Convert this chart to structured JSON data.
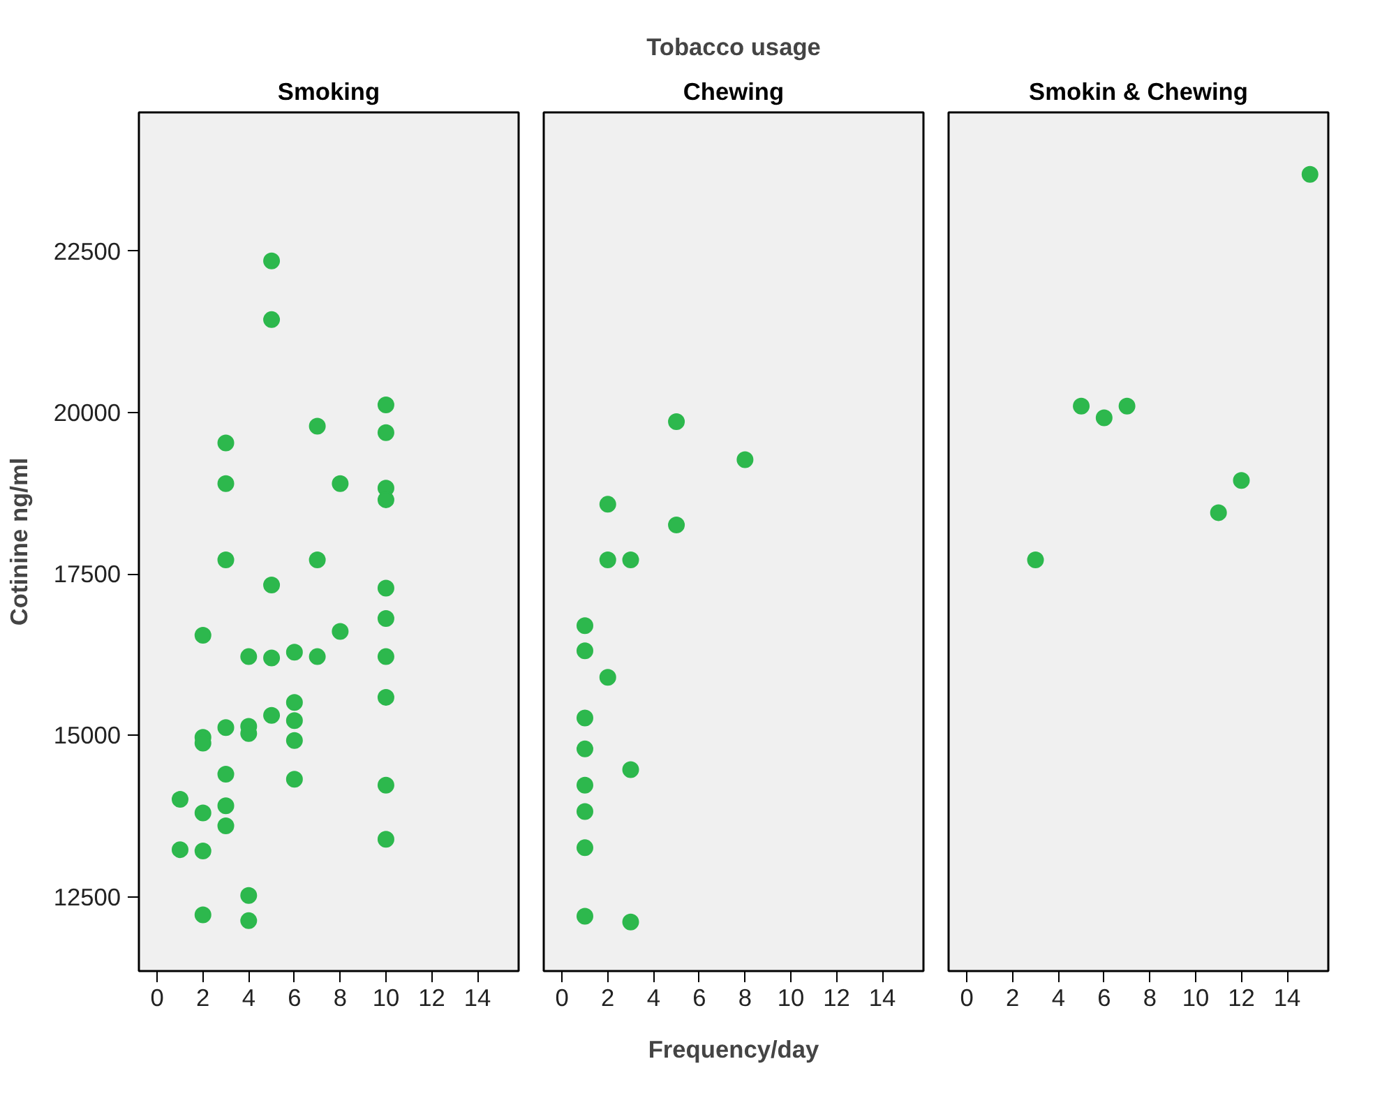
{
  "chart_data": [
    {
      "type": "scatter",
      "title": "Smoking",
      "ylabel": "Cotinine ng/ml",
      "marker": "circle",
      "color": "#2db84d",
      "x": [
        5,
        5,
        10,
        10,
        10,
        10,
        3,
        3,
        7,
        8,
        3,
        7,
        5,
        10,
        10,
        2,
        8,
        4,
        5,
        6,
        7,
        10,
        6,
        6,
        6,
        6,
        5,
        10,
        3,
        4,
        4,
        2,
        2,
        3,
        1,
        2,
        3,
        3,
        10,
        1,
        2,
        10,
        4,
        4,
        2
      ],
      "values": [
        22350,
        21440,
        20120,
        19690,
        18830,
        18650,
        19530,
        18900,
        19790,
        18900,
        17720,
        17720,
        17330,
        17280,
        16810,
        16550,
        16610,
        16220,
        16200,
        16290,
        16220,
        16220,
        15510,
        15230,
        14920,
        14320,
        15310,
        15590,
        15120,
        15140,
        15030,
        14970,
        14880,
        14400,
        14010,
        13800,
        13910,
        13600,
        14230,
        13230,
        13210,
        13390,
        12520,
        12130,
        12220
      ],
      "xlim": [
        -0.8,
        15.8
      ],
      "xticks": [
        0,
        2,
        4,
        6,
        8,
        10,
        12,
        14
      ],
      "ylim": [
        11350,
        24650
      ],
      "yticks": [
        12500,
        15000,
        17500,
        20000,
        22500
      ]
    },
    {
      "type": "scatter",
      "title": "Chewing",
      "xlabel": "Frequency/day",
      "annotations": [
        "Tobacco usage"
      ],
      "marker": "circle",
      "color": "#2db84d",
      "tick_labels": "x",
      "x": [
        5,
        8,
        2,
        5,
        2,
        3,
        1,
        1,
        2,
        1,
        1,
        3,
        1,
        1,
        1,
        1,
        3
      ],
      "values": [
        19860,
        19270,
        18580,
        18260,
        17720,
        17720,
        16700,
        16310,
        15900,
        15270,
        14790,
        14470,
        14230,
        13820,
        13260,
        12200,
        12110
      ],
      "xlim": [
        -0.8,
        15.8
      ],
      "xticks": [
        0,
        2,
        4,
        6,
        8,
        10,
        12,
        14
      ],
      "ylim": [
        11350,
        24650
      ],
      "yticks": [
        12500,
        15000,
        17500,
        20000,
        22500
      ]
    },
    {
      "type": "scatter",
      "title": "Smokin & Chewing",
      "marker": "circle",
      "color": "#2db84d",
      "tick_labels": "x",
      "x": [
        3,
        5,
        6,
        7,
        11,
        12,
        15
      ],
      "values": [
        17720,
        20100,
        19920,
        20100,
        18450,
        18950,
        23690
      ],
      "xlim": [
        -0.8,
        15.8
      ],
      "xticks": [
        0,
        2,
        4,
        6,
        8,
        10,
        12,
        14
      ],
      "ylim": [
        11350,
        24650
      ],
      "yticks": [
        12500,
        15000,
        17500,
        20000,
        22500
      ]
    }
  ]
}
